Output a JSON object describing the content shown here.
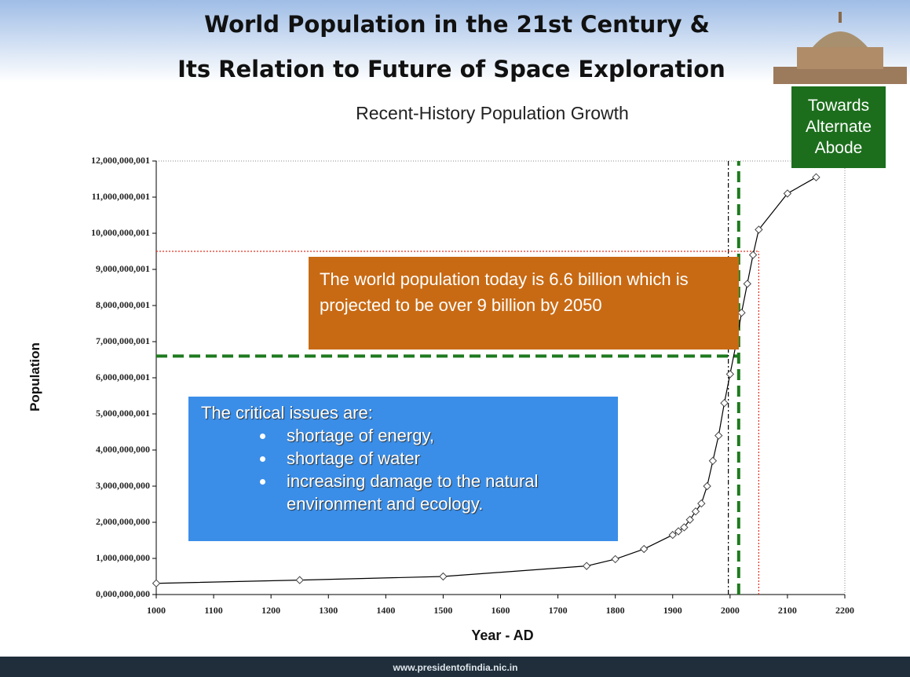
{
  "slide": {
    "title_lines": [
      "World Population in the 21st Century &",
      "Its Relation to Future of Space Exploration"
    ],
    "badge": [
      "Towards",
      "Alternate",
      "Abode"
    ],
    "footer": "www.presidentofindia.nic.in"
  },
  "chart_data": {
    "type": "line",
    "title": "Recent-History Population Growth",
    "xlabel": "Year - AD",
    "ylabel": "Population",
    "color": "#000000",
    "x": [
      1000,
      1250,
      1500,
      1750,
      1800,
      1850,
      1900,
      1910,
      1920,
      1930,
      1940,
      1950,
      1960,
      1970,
      1980,
      1990,
      2000,
      2010,
      2020,
      2030,
      2040,
      2050,
      2100,
      2150
    ],
    "values": [
      310000000,
      400000000,
      500000000,
      790000000,
      980000000,
      1260000000,
      1650000000,
      1750000000,
      1860000000,
      2070000000,
      2300000000,
      2520000000,
      3000000000,
      3700000000,
      4400000000,
      5300000000,
      6100000000,
      6900000000,
      7800000000,
      8600000000,
      9400000000,
      10100000000,
      11100000000,
      11550000000
    ],
    "xlim": [
      1000,
      2200
    ],
    "xticks": [
      1000,
      1100,
      1200,
      1300,
      1400,
      1500,
      1600,
      1700,
      1800,
      1900,
      2000,
      2100,
      2200
    ],
    "ylim": [
      0,
      12000000001
    ],
    "yticks": [
      {
        "value": 0,
        "label": "0,000,000,000"
      },
      {
        "value": 1000000000,
        "label": "1,000,000,000"
      },
      {
        "value": 2000000000,
        "label": "2,000,000,000"
      },
      {
        "value": 3000000000,
        "label": "3,000,000,000"
      },
      {
        "value": 4000000000,
        "label": "4,000,000,000"
      },
      {
        "value": 5000000001,
        "label": "5,000,000,001"
      },
      {
        "value": 6000000001,
        "label": "6,000,000,001"
      },
      {
        "value": 7000000001,
        "label": "7,000,000,001"
      },
      {
        "value": 8000000001,
        "label": "8,000,000,001"
      },
      {
        "value": 9000000001,
        "label": "9,000,000,001"
      },
      {
        "value": 10000000001,
        "label": "10,000,000,001"
      },
      {
        "value": 11000000001,
        "label": "11,000,000,001"
      },
      {
        "value": 12000000001,
        "label": "12,000,000,001"
      }
    ],
    "ref_lines": [
      {
        "axis": "y",
        "value": 6600000000,
        "to": 2015,
        "color": "#1e7a1e",
        "style": "dashed"
      },
      {
        "axis": "x",
        "value": 2015,
        "color": "#1e7a1e",
        "style": "dashed"
      },
      {
        "axis": "x",
        "value": 1997,
        "color": "#000000",
        "style": "dashdot"
      },
      {
        "axis": "y",
        "value": 9500000000,
        "to": 2050,
        "color": "#e03020",
        "style": "dotted"
      },
      {
        "axis": "x",
        "value": 2050,
        "to": 9500000000,
        "color": "#e03020",
        "style": "dotted"
      }
    ],
    "annotations": {
      "note": "The world population today is 6.6 billion which is projected to be over 9 billion by 2050",
      "issues_heading": "The critical issues are:",
      "issues": [
        "shortage of energy,",
        "shortage of water",
        "increasing damage to the natural environment and ecology."
      ]
    }
  }
}
